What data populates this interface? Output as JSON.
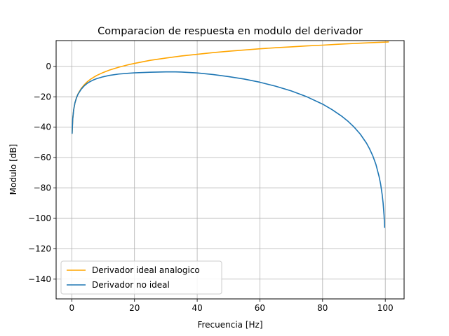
{
  "chart_data": {
    "type": "line",
    "title": "Comparacion de respuesta en modulo del derivador",
    "xlabel": "Frecuencia [Hz]",
    "ylabel": "Modulo [dB]",
    "xlim": [
      -5,
      106
    ],
    "ylim": [
      -153,
      17
    ],
    "xticks": [
      0,
      20,
      40,
      60,
      80,
      100
    ],
    "yticks": [
      0,
      -20,
      -40,
      -60,
      -80,
      -100,
      -120,
      -140
    ],
    "grid": true,
    "legend_position": "lower-left",
    "series": [
      {
        "name": "Derivador ideal analogico",
        "color": "#ffa500",
        "x": [
          0.1,
          0.3,
          0.6,
          1,
          1.5,
          2,
          3,
          4,
          5,
          6,
          7,
          8,
          10,
          12,
          15,
          18,
          20,
          25,
          30,
          35,
          40,
          45,
          50,
          55,
          60,
          65,
          70,
          75,
          80,
          85,
          90,
          95,
          101
        ],
        "y": [
          -44,
          -34.5,
          -28.5,
          -24,
          -20.5,
          -18,
          -14.5,
          -12,
          -10,
          -8.4,
          -7.1,
          -5.9,
          -4,
          -2.4,
          -0.5,
          1.1,
          2,
          4,
          5.5,
          6.9,
          8,
          9.1,
          10,
          10.8,
          11.6,
          12.3,
          12.9,
          13.5,
          14,
          14.6,
          15.1,
          15.6,
          16.1
        ]
      },
      {
        "name": "Derivador no ideal",
        "color": "#1f77b4",
        "x": [
          0.1,
          0.3,
          0.6,
          1,
          1.5,
          2,
          3,
          4,
          5,
          6,
          7,
          8,
          10,
          12,
          15,
          18,
          20,
          25,
          30,
          33,
          35,
          40,
          45,
          50,
          55,
          60,
          65,
          70,
          75,
          80,
          83,
          86,
          88,
          90,
          92,
          94,
          95,
          96,
          97,
          98,
          98.5,
          99,
          99.3,
          99.6,
          99.8
        ],
        "y": [
          -44,
          -34.5,
          -28.5,
          -24,
          -20.6,
          -18.2,
          -15,
          -12.7,
          -11,
          -9.8,
          -8.8,
          -8,
          -6.8,
          -5.9,
          -5,
          -4.5,
          -4.2,
          -3.8,
          -3.6,
          -3.6,
          -3.7,
          -4.3,
          -5.3,
          -6.7,
          -8.3,
          -10.4,
          -13,
          -16.1,
          -20,
          -24.8,
          -28.4,
          -32.6,
          -35.9,
          -39.8,
          -44.5,
          -50.5,
          -54.3,
          -58.8,
          -64.4,
          -72.3,
          -77.3,
          -84.3,
          -89.8,
          -97.8,
          -106
        ]
      }
    ]
  }
}
